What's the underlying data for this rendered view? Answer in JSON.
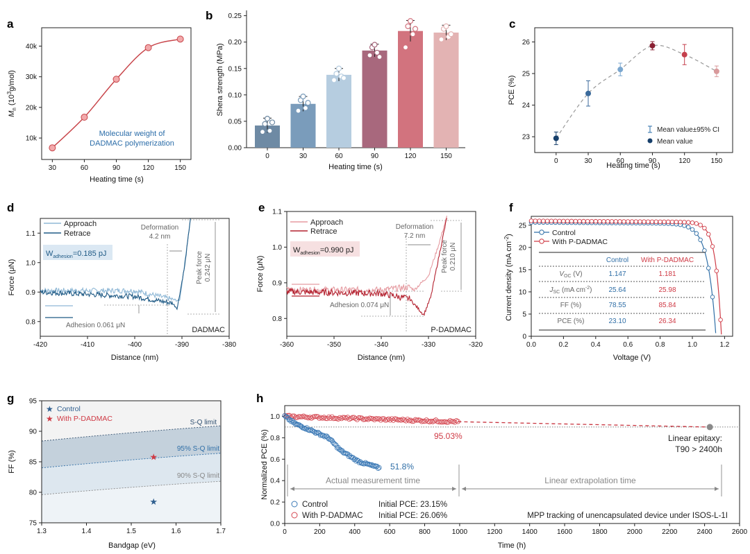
{
  "chart_data": [
    {
      "panel": "a",
      "type": "line",
      "x": [
        30,
        60,
        90,
        120,
        150
      ],
      "values": [
        6800,
        16800,
        29200,
        39500,
        42300
      ],
      "xlim": [
        20,
        160
      ],
      "ylim": [
        3000,
        46000
      ],
      "xticks": [
        "30",
        "60",
        "90",
        "120",
        "150"
      ],
      "yticks": [
        {
          "v": 10000,
          "t": "10k"
        },
        {
          "v": 20000,
          "t": "20k"
        },
        {
          "v": 30000,
          "t": "30k"
        },
        {
          "v": 40000,
          "t": "40k"
        }
      ],
      "xlabel": "Heating time (s)",
      "ylabel_main": "M",
      "ylabel_sub": "n",
      "ylabel_rest": " (10",
      "ylabel_sup": "3",
      "ylabel_end": "g/mol)",
      "annotation": [
        "Molecular weight of",
        "DADMAC polymerization"
      ],
      "color": "#c8454a"
    },
    {
      "panel": "b",
      "type": "bar",
      "categories": [
        "0",
        "30",
        "60",
        "90",
        "120",
        "150"
      ],
      "values": [
        0.042,
        0.083,
        0.138,
        0.184,
        0.221,
        0.218
      ],
      "errors": [
        0.014,
        0.014,
        0.012,
        0.012,
        0.02,
        0.014
      ],
      "points": [
        [
          0.03,
          0.045,
          0.055,
          0.032,
          0.048
        ],
        [
          0.07,
          0.09,
          0.097,
          0.075,
          0.085
        ],
        [
          0.128,
          0.14,
          0.15,
          0.135,
          0.132
        ],
        [
          0.175,
          0.19,
          0.195,
          0.18,
          0.172
        ],
        [
          0.19,
          0.23,
          0.24,
          0.215,
          0.225
        ],
        [
          0.205,
          0.225,
          0.23,
          0.21,
          0.215
        ]
      ],
      "colors": [
        "#6e8aa4",
        "#7a9cbb",
        "#b6cde0",
        "#a8687d",
        "#d2737e",
        "#e3b3b3"
      ],
      "ylim": [
        0,
        0.26
      ],
      "yticks": [
        "0.00",
        "0.05",
        "0.10",
        "0.15",
        "0.20",
        "0.25"
      ],
      "xlabel": "Heating time (s)",
      "ylabel": "Shera strength (MPa)"
    },
    {
      "panel": "c",
      "type": "scatter",
      "x": [
        0,
        30,
        60,
        90,
        120,
        150
      ],
      "values": [
        22.95,
        24.37,
        25.13,
        25.88,
        25.6,
        25.07
      ],
      "ci": [
        0.2,
        0.4,
        0.2,
        0.13,
        0.32,
        0.17
      ],
      "colors": [
        "#173f6b",
        "#3b6a9b",
        "#7ba7cf",
        "#8a1f33",
        "#c5404d",
        "#d99a9c"
      ],
      "xlim": [
        -20,
        165
      ],
      "ylim": [
        22.5,
        26.45
      ],
      "xticks": [
        "0",
        "30",
        "60",
        "90",
        "120",
        "150"
      ],
      "yticks": [
        "23",
        "24",
        "25",
        "26"
      ],
      "xlabel": "Heating time (s)",
      "ylabel": "PCE (%)",
      "legend": [
        "Mean value±95% CI",
        "Mean value"
      ]
    },
    {
      "panel": "d",
      "type": "line",
      "xlim": [
        -420,
        -380
      ],
      "ylim": [
        0.75,
        1.15
      ],
      "xticks": [
        "-420",
        "-410",
        "-400",
        "-390",
        "-380"
      ],
      "yticks": [
        "0.8",
        "0.9",
        "1.0",
        "1.1"
      ],
      "xlabel": "Distance (nm)",
      "ylabel": "Force (μN)",
      "series": [
        {
          "name": "Approach",
          "color": "#8fb8d6",
          "x": [
            -420,
            -400,
            -392,
            -390.5,
            -389.4,
            -388.2
          ],
          "y": [
            0.905,
            0.905,
            0.875,
            0.87,
            1.0,
            1.15
          ]
        },
        {
          "name": "Retrace",
          "color": "#1f5a85",
          "x": [
            -420,
            -400,
            -392,
            -391,
            -389.4,
            -388.2
          ],
          "y": [
            0.9,
            0.885,
            0.862,
            0.845,
            0.99,
            1.15
          ]
        }
      ],
      "w_label": "W",
      "w_sub": "adhesion",
      "w_value": "=0.185 pJ",
      "deformation": [
        "Deformation",
        "4.2 nm"
      ],
      "peak": [
        "Peak force",
        "0.242 μN"
      ],
      "adhesion": "Adhesion 0.061 μN",
      "material": "DADMAC",
      "accent": "#1f5a85",
      "box_fill": "#dbe8f3"
    },
    {
      "panel": "e",
      "type": "line",
      "xlim": [
        -360,
        -320
      ],
      "ylim": [
        0.75,
        1.1
      ],
      "xticks": [
        "-360",
        "-350",
        "-340",
        "-330",
        "-320"
      ],
      "yticks": [
        "0.8",
        "0.9",
        "1.0",
        "1.1"
      ],
      "xlabel": "Distance (nm)",
      "ylabel": "Force (μN)",
      "series": [
        {
          "name": "Approach",
          "color": "#e59aa0",
          "x": [
            -360,
            -340,
            -334,
            -333,
            -330,
            -328,
            -326
          ],
          "y": [
            0.88,
            0.88,
            0.888,
            0.88,
            0.92,
            1.0,
            1.09
          ]
        },
        {
          "name": "Retrace",
          "color": "#b3202e",
          "x": [
            -360,
            -340,
            -334,
            -331,
            -329.5,
            -328,
            -326
          ],
          "y": [
            0.875,
            0.87,
            0.855,
            0.81,
            0.86,
            0.96,
            1.09
          ]
        }
      ],
      "w_label": "W",
      "w_sub": "adhesion",
      "w_value": "=0.990 pJ",
      "deformation": [
        "Deformation",
        "7.2 nm"
      ],
      "peak": [
        "Peak force",
        "0.210 μN"
      ],
      "adhesion": "Adhesion 0.074 μN",
      "material": "P-DADMAC",
      "accent": "#b3202e",
      "box_fill": "#f6e0e1"
    },
    {
      "panel": "f",
      "type": "line",
      "xlim": [
        0,
        1.25
      ],
      "ylim": [
        0,
        27
      ],
      "xticks": [
        "0.0",
        "0.2",
        "0.4",
        "0.6",
        "0.8",
        "1.0",
        "1.2"
      ],
      "yticks": [
        "0",
        "5",
        "10",
        "15",
        "20",
        "25"
      ],
      "xlabel": "Voltage (V)",
      "ylabel_main": "Current density (mA cm",
      "ylabel_sup": "-2",
      "ylabel_end": ")",
      "series": [
        {
          "name": "Control",
          "color": "#2f6ea6",
          "voc": 1.147,
          "jsc": 25.64,
          "vt": 0.05
        },
        {
          "name": "With P-DADMAC",
          "color": "#cf3a45",
          "voc": 1.181,
          "jsc": 25.98,
          "vt": 0.036
        }
      ],
      "table": {
        "header": [
          "",
          "Control",
          "With P-DADMAC"
        ],
        "rows": [
          {
            "label": "V",
            "sub": "OC",
            "suffix": " (V)",
            "c": "1.147",
            "p": "1.181"
          },
          {
            "label": "J",
            "sub": "SC",
            "suffix": " (mA cm",
            "sup": "-2",
            "end": ")",
            "c": "25.64",
            "p": "25.98"
          },
          {
            "label": "FF (%)",
            "c": "78.55",
            "p": "85.84"
          },
          {
            "label": "PCE (%)",
            "c": "23.10",
            "p": "26.34"
          }
        ]
      }
    },
    {
      "panel": "g",
      "type": "area",
      "xlim": [
        1.3,
        1.7
      ],
      "ylim": [
        75,
        95
      ],
      "xticks": [
        "1.3",
        "1.4",
        "1.5",
        "1.6",
        "1.7"
      ],
      "yticks": [
        "75",
        "80",
        "85",
        "90",
        "95"
      ],
      "xlabel": "Bandgap (eV)",
      "ylabel": "FF (%)",
      "limits": [
        {
          "name": "S-Q limit",
          "y0": 88.4,
          "y1": 90.9,
          "fill": "#c4d1dc"
        },
        {
          "name": "95% S-Q limit",
          "y0": 84.0,
          "y1": 86.4,
          "fill": "#dde7ef"
        },
        {
          "name": "90% S-Q limit",
          "y0": 79.6,
          "y1": 81.8,
          "fill": "#eef3f7"
        }
      ],
      "base_fill": "#f3f3f3",
      "series": [
        {
          "name": "Control",
          "x": 1.55,
          "y": 78.55,
          "color": "#2f5f8f"
        },
        {
          "name": "With P-DADMAC",
          "x": 1.55,
          "y": 85.84,
          "color": "#cf3a45"
        }
      ]
    },
    {
      "panel": "h",
      "type": "scatter",
      "xlim": [
        0,
        2600
      ],
      "ylim": [
        0,
        1.1
      ],
      "xticks": [
        "0",
        "200",
        "400",
        "600",
        "800",
        "1000",
        "1200",
        "1400",
        "1600",
        "1800",
        "2000",
        "2200",
        "2400",
        "2600"
      ],
      "yticks": [
        "0.0",
        "0.2",
        "0.4",
        "0.6",
        "0.8",
        "1.0"
      ],
      "xlabel": "Time (h)",
      "ylabel": "Normalized PCE (%)",
      "series": [
        {
          "name": "Control",
          "initial": "Initial PCE: 23.15%",
          "color": "#3a78b5",
          "end_x": 540,
          "end_label": "51.8%"
        },
        {
          "name": "With P-DADMAC",
          "initial": "Initial PCE: 26.06%",
          "color": "#d4454f",
          "end_x": 990,
          "end_label": "95.03%"
        }
      ],
      "extrap": {
        "x": [
          990,
          2430
        ],
        "y": [
          0.95,
          0.9
        ],
        "color": "#c8333e",
        "end_color": "#8a8a8a"
      },
      "ref_line": 0.9,
      "actual_label": "Actual measurement time",
      "extrap_label": "Linear extrapolation time",
      "epitaxy": [
        "Linear epitaxy:",
        "T90  > 2400h"
      ],
      "mpp": "MPP tracking of unencapsulated device under ISOS-L-1I"
    }
  ]
}
